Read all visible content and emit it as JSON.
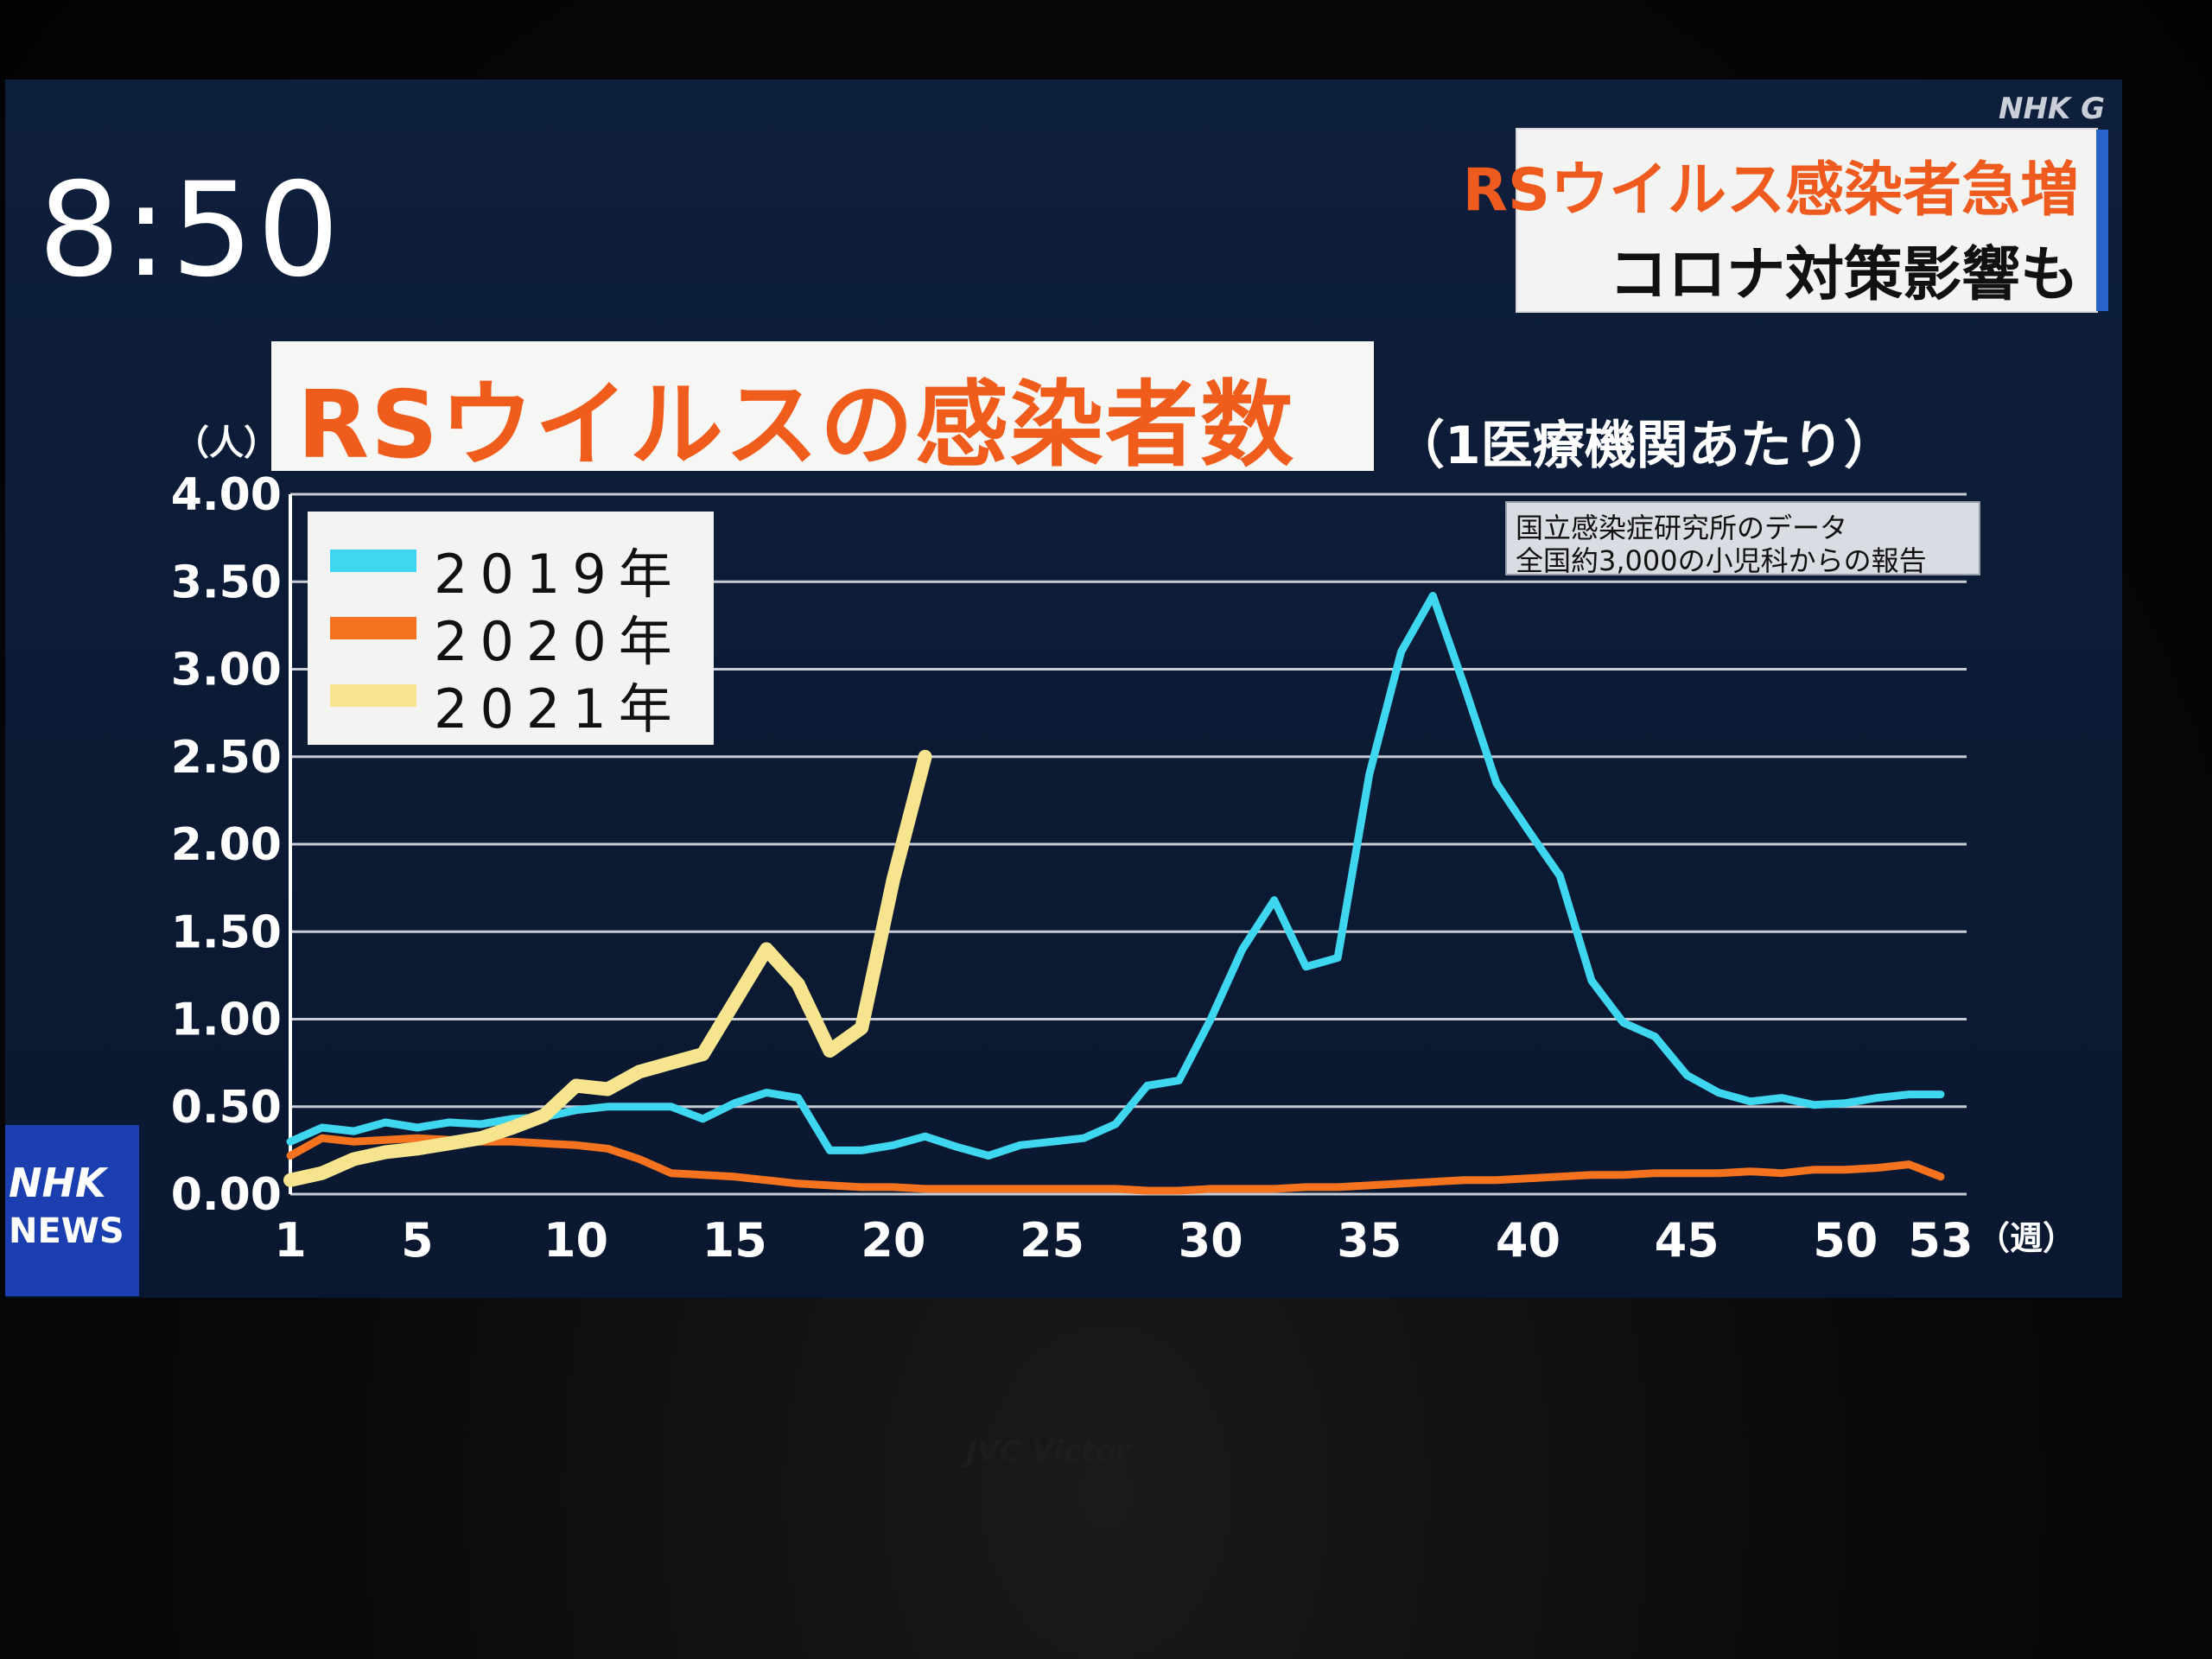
{
  "overlay": {
    "clock": "8:50",
    "channel": "NHK G",
    "headline_1": "RSウイルス感染者急増",
    "headline_2": "コロナ対策影響も",
    "news_logo_1": "NHK",
    "news_logo_2": "NEWS",
    "tv_brand": "JVC Victor"
  },
  "chart_data": {
    "type": "line",
    "title": "RSウイルスの感染者数",
    "subtitle": "（1医療機関あたり）",
    "ylabel": "（人）",
    "xlabel_unit": "（週）",
    "source_lines": [
      "国立感染症研究所のデータ",
      "全国約3,000の小児科からの報告"
    ],
    "ylim": [
      0,
      4
    ],
    "xlim": [
      1,
      53
    ],
    "y_ticks": [
      "0.00",
      "0.50",
      "1.00",
      "1.50",
      "2.00",
      "2.50",
      "3.00",
      "3.50",
      "4.00"
    ],
    "x_ticks": [
      1,
      5,
      10,
      15,
      20,
      25,
      30,
      35,
      40,
      45,
      50,
      53
    ],
    "grid": true,
    "legend_position": "top-left",
    "series": [
      {
        "name": "2019年",
        "color": "#3fd6ef",
        "x": [
          1,
          2,
          3,
          4,
          5,
          6,
          7,
          8,
          9,
          10,
          11,
          12,
          13,
          14,
          15,
          16,
          17,
          18,
          19,
          20,
          21,
          22,
          23,
          24,
          25,
          26,
          27,
          28,
          29,
          30,
          31,
          32,
          33,
          34,
          35,
          36,
          37,
          38,
          39,
          40,
          41,
          42,
          43,
          44,
          45,
          46,
          47,
          48,
          49,
          50,
          51,
          52,
          53
        ],
        "values": [
          0.3,
          0.38,
          0.36,
          0.41,
          0.38,
          0.41,
          0.4,
          0.43,
          0.44,
          0.48,
          0.5,
          0.5,
          0.5,
          0.43,
          0.52,
          0.58,
          0.55,
          0.25,
          0.25,
          0.28,
          0.33,
          0.27,
          0.22,
          0.28,
          0.3,
          0.32,
          0.4,
          0.62,
          0.65,
          1.0,
          1.4,
          1.68,
          1.3,
          1.35,
          2.4,
          3.1,
          3.42,
          2.9,
          2.35,
          2.08,
          1.82,
          1.22,
          0.98,
          0.9,
          0.68,
          0.58,
          0.53,
          0.55,
          0.51,
          0.52,
          0.55,
          0.57,
          0.57
        ]
      },
      {
        "name": "2020年",
        "color": "#f5731e",
        "x": [
          1,
          2,
          3,
          4,
          5,
          6,
          7,
          8,
          9,
          10,
          11,
          12,
          13,
          14,
          15,
          16,
          17,
          18,
          19,
          20,
          21,
          22,
          23,
          24,
          25,
          26,
          27,
          28,
          29,
          30,
          31,
          32,
          33,
          34,
          35,
          36,
          37,
          38,
          39,
          40,
          41,
          42,
          43,
          44,
          45,
          46,
          47,
          48,
          49,
          50,
          51,
          52,
          53
        ],
        "values": [
          0.22,
          0.32,
          0.3,
          0.31,
          0.32,
          0.31,
          0.3,
          0.3,
          0.29,
          0.28,
          0.26,
          0.2,
          0.12,
          0.11,
          0.1,
          0.08,
          0.06,
          0.05,
          0.04,
          0.04,
          0.03,
          0.03,
          0.03,
          0.03,
          0.03,
          0.03,
          0.03,
          0.02,
          0.02,
          0.03,
          0.03,
          0.03,
          0.04,
          0.04,
          0.05,
          0.06,
          0.07,
          0.08,
          0.08,
          0.09,
          0.1,
          0.11,
          0.11,
          0.12,
          0.12,
          0.12,
          0.13,
          0.12,
          0.14,
          0.14,
          0.15,
          0.17,
          0.1
        ]
      },
      {
        "name": "2021年",
        "color": "#f6e58e",
        "x": [
          1,
          2,
          3,
          4,
          5,
          6,
          7,
          8,
          9,
          10,
          11,
          12,
          13,
          14,
          15,
          16,
          17,
          18,
          19,
          20,
          21
        ],
        "values": [
          0.08,
          0.12,
          0.2,
          0.24,
          0.26,
          0.29,
          0.32,
          0.38,
          0.45,
          0.62,
          0.6,
          0.7,
          0.75,
          0.8,
          1.1,
          1.4,
          1.2,
          0.82,
          0.95,
          1.8,
          2.5
        ]
      }
    ]
  }
}
